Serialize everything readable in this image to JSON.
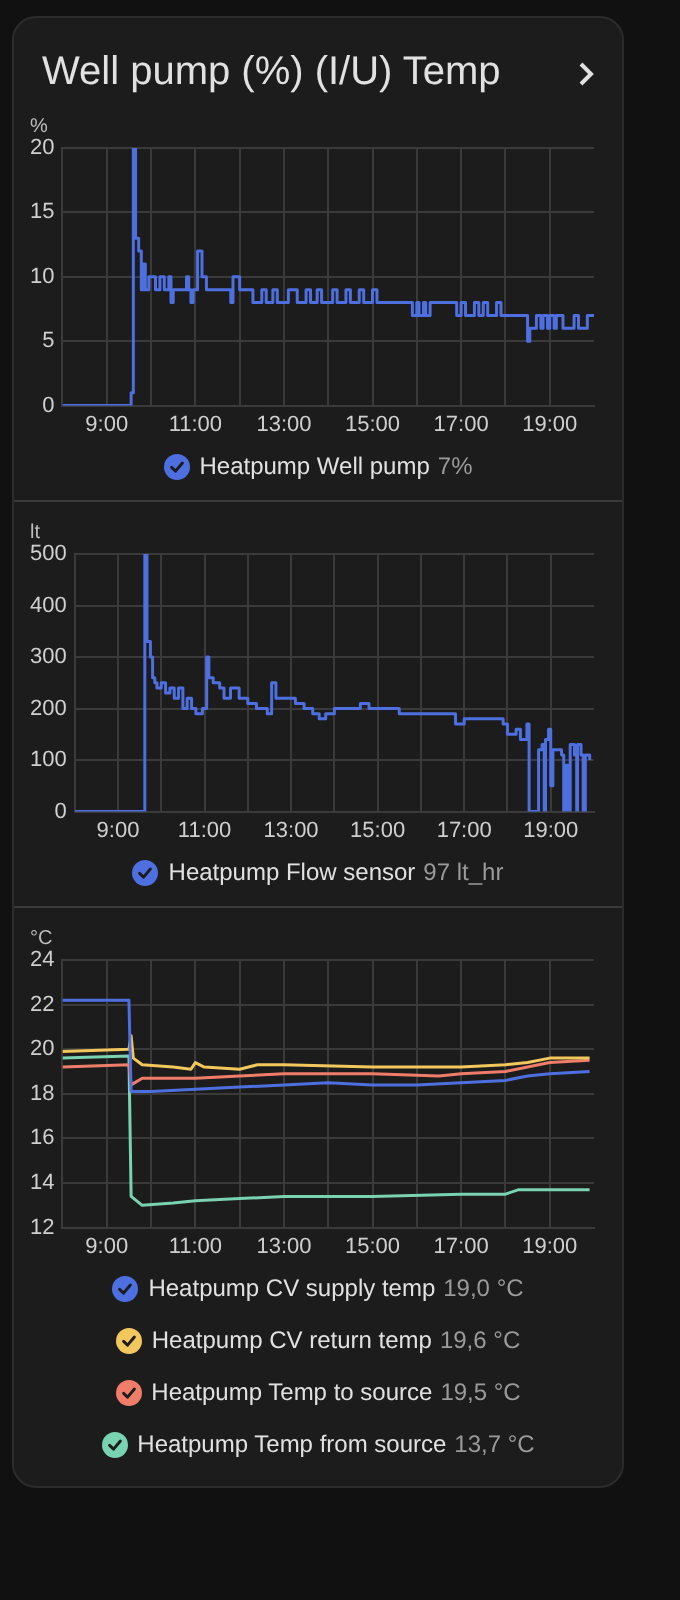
{
  "chart_data": [
    {
      "type": "step",
      "title": "Well pump (%) (I/U) Temp",
      "ylabel": "%",
      "xlim": [
        8,
        20
      ],
      "xticks": [
        {
          "value": 9,
          "label": "9:00"
        },
        {
          "value": 10,
          "label": null
        },
        {
          "value": 11,
          "label": "11:00"
        },
        {
          "value": 12,
          "label": null
        },
        {
          "value": 13,
          "label": "13:00"
        },
        {
          "value": 14,
          "label": null
        },
        {
          "value": 15,
          "label": "15:00"
        },
        {
          "value": 16,
          "label": null
        },
        {
          "value": 17,
          "label": "17:00"
        },
        {
          "value": 18,
          "label": null
        },
        {
          "value": 19,
          "label": "19:00"
        }
      ],
      "ylim": [
        0,
        20
      ],
      "yticks": [
        0,
        5,
        10,
        15,
        20
      ],
      "grid": true,
      "legend": "bottom",
      "marker": "none",
      "annotations": [
        "7%"
      ],
      "series": [
        {
          "name": "Heatpump Well pump",
          "color": "#4d6fe0",
          "x": [
            8,
            9.5,
            9.55,
            9.6,
            9.65,
            9.72,
            9.78,
            9.82,
            9.87,
            9.95,
            10.1,
            10.2,
            10.3,
            10.4,
            10.45,
            10.5,
            10.7,
            10.8,
            10.85,
            10.9,
            10.95,
            11.05,
            11.15,
            11.25,
            11.8,
            11.85,
            12.0,
            12.3,
            12.5,
            12.6,
            12.75,
            12.85,
            13.1,
            13.3,
            13.5,
            13.6,
            13.75,
            13.85,
            14.1,
            14.2,
            14.4,
            14.5,
            14.7,
            14.8,
            15.0,
            15.1,
            15.9,
            16.0,
            16.05,
            16.15,
            16.2,
            16.3,
            16.9,
            17.0,
            17.1,
            17.3,
            17.4,
            17.5,
            17.6,
            17.8,
            17.9,
            18.5,
            18.55,
            18.7,
            18.8,
            18.85,
            18.95,
            19.0,
            19.1,
            19.15,
            19.3,
            19.55,
            19.65,
            19.85,
            20
          ],
          "values": [
            0,
            0,
            1,
            20,
            13,
            12,
            9,
            11,
            9,
            10,
            9,
            10,
            9,
            10,
            8,
            9,
            9,
            10,
            9,
            8,
            9,
            12,
            10,
            9,
            8,
            10,
            9,
            8,
            9,
            8,
            9,
            8,
            9,
            8,
            9,
            8,
            9,
            8,
            9,
            8,
            9,
            8,
            9,
            8,
            9,
            8,
            7,
            8,
            7,
            8,
            7,
            8,
            7,
            8,
            7,
            8,
            7,
            8,
            7,
            8,
            7,
            5,
            6,
            7,
            6,
            7,
            6,
            7,
            6,
            7,
            6,
            7,
            6,
            7,
            7
          ]
        }
      ]
    },
    {
      "type": "step",
      "ylabel": "lt",
      "xlim": [
        8,
        20
      ],
      "xticks": [
        {
          "value": 9,
          "label": "9:00"
        },
        {
          "value": 10,
          "label": null
        },
        {
          "value": 11,
          "label": "11:00"
        },
        {
          "value": 12,
          "label": null
        },
        {
          "value": 13,
          "label": "13:00"
        },
        {
          "value": 14,
          "label": null
        },
        {
          "value": 15,
          "label": "15:00"
        },
        {
          "value": 16,
          "label": null
        },
        {
          "value": 17,
          "label": "17:00"
        },
        {
          "value": 18,
          "label": null
        },
        {
          "value": 19,
          "label": "19:00"
        }
      ],
      "ylim": [
        0,
        500
      ],
      "yticks": [
        0,
        100,
        200,
        300,
        400,
        500
      ],
      "grid": true,
      "legend": "bottom",
      "marker": "none",
      "annotations": [
        "97 lt_hr"
      ],
      "series": [
        {
          "name": "Heatpump Flow sensor",
          "color": "#4d6fe0",
          "x": [
            8,
            9.6,
            9.62,
            9.67,
            9.75,
            9.8,
            9.85,
            9.9,
            10.0,
            10.1,
            10.2,
            10.3,
            10.4,
            10.5,
            10.6,
            10.7,
            10.8,
            10.95,
            11.05,
            11.1,
            11.2,
            11.35,
            11.45,
            11.6,
            11.8,
            12.0,
            12.2,
            12.45,
            12.55,
            12.65,
            12.9,
            13.1,
            13.3,
            13.5,
            13.65,
            13.8,
            14.0,
            14.3,
            14.6,
            14.8,
            15.2,
            15.5,
            15.8,
            16.2,
            16.5,
            16.8,
            17.0,
            17.3,
            17.6,
            17.9,
            18.0,
            18.2,
            18.3,
            18.45,
            18.5,
            18.72,
            18.8,
            18.85,
            18.88,
            18.95,
            19.0,
            19.05,
            19.15,
            19.25,
            19.3,
            19.35,
            19.4,
            19.45,
            19.55,
            19.6,
            19.62,
            19.7,
            19.75,
            19.8,
            19.9
          ],
          "values": [
            0,
            0,
            500,
            330,
            300,
            260,
            250,
            240,
            250,
            230,
            240,
            220,
            240,
            200,
            220,
            200,
            190,
            200,
            300,
            260,
            250,
            240,
            220,
            240,
            220,
            210,
            200,
            190,
            250,
            220,
            220,
            210,
            200,
            190,
            180,
            190,
            200,
            200,
            210,
            200,
            200,
            190,
            190,
            190,
            190,
            170,
            180,
            180,
            180,
            170,
            150,
            160,
            140,
            170,
            0,
            120,
            130,
            0,
            140,
            160,
            50,
            120,
            120,
            110,
            0,
            90,
            0,
            130,
            110,
            0,
            130,
            110,
            0,
            110,
            100
          ]
        }
      ]
    },
    {
      "type": "line",
      "ylabel": "°C",
      "xlim": [
        8,
        20
      ],
      "xticks": [
        {
          "value": 9,
          "label": "9:00"
        },
        {
          "value": 10,
          "label": null
        },
        {
          "value": 11,
          "label": "11:00"
        },
        {
          "value": 12,
          "label": null
        },
        {
          "value": 13,
          "label": "13:00"
        },
        {
          "value": 14,
          "label": null
        },
        {
          "value": 15,
          "label": "15:00"
        },
        {
          "value": 16,
          "label": null
        },
        {
          "value": 17,
          "label": "17:00"
        },
        {
          "value": 18,
          "label": null
        },
        {
          "value": 19,
          "label": "19:00"
        }
      ],
      "ylim": [
        12,
        24
      ],
      "yticks": [
        12,
        14,
        16,
        18,
        20,
        22,
        24
      ],
      "grid": true,
      "legend": "bottom",
      "marker": "none",
      "annotations": [
        "19,0 °C",
        "19,6 °C",
        "19,5 °C",
        "13,7 °C"
      ],
      "series": [
        {
          "name": "Heatpump CV supply temp",
          "color": "#4d6fe0",
          "x": [
            8,
            9.5,
            9.55,
            10,
            11,
            12,
            13,
            14,
            15,
            16,
            17,
            18,
            18.5,
            19,
            19.9
          ],
          "values": [
            22.2,
            22.2,
            18.1,
            18.1,
            18.2,
            18.3,
            18.4,
            18.5,
            18.4,
            18.4,
            18.5,
            18.6,
            18.8,
            18.9,
            19.0
          ]
        },
        {
          "name": "Heatpump CV return temp",
          "color": "#f2c75c",
          "x": [
            8,
            9.5,
            9.55,
            9.6,
            9.8,
            10.5,
            10.9,
            11.0,
            11.2,
            12,
            12.4,
            13,
            15,
            17,
            18,
            18.5,
            19,
            19.9
          ],
          "values": [
            19.9,
            20.0,
            20.6,
            19.6,
            19.3,
            19.2,
            19.1,
            19.4,
            19.2,
            19.1,
            19.3,
            19.3,
            19.2,
            19.2,
            19.3,
            19.4,
            19.6,
            19.6
          ]
        },
        {
          "name": "Heatpump Temp to source",
          "color": "#ef7d6a",
          "x": [
            8,
            9.5,
            9.55,
            9.8,
            11,
            12,
            13,
            15,
            16.5,
            17,
            18,
            18.5,
            19,
            19.9
          ],
          "values": [
            19.2,
            19.3,
            18.4,
            18.7,
            18.7,
            18.8,
            18.9,
            18.9,
            18.8,
            18.9,
            19.0,
            19.2,
            19.4,
            19.5
          ]
        },
        {
          "name": "Heatpump Temp from source",
          "color": "#79d2b0",
          "x": [
            8,
            9.5,
            9.55,
            9.8,
            10.5,
            11,
            12,
            13,
            15,
            17,
            18,
            18.3,
            19.9
          ],
          "values": [
            19.6,
            19.7,
            13.4,
            13.0,
            13.1,
            13.2,
            13.3,
            13.4,
            13.4,
            13.5,
            13.5,
            13.7,
            13.7
          ]
        }
      ]
    }
  ]
}
